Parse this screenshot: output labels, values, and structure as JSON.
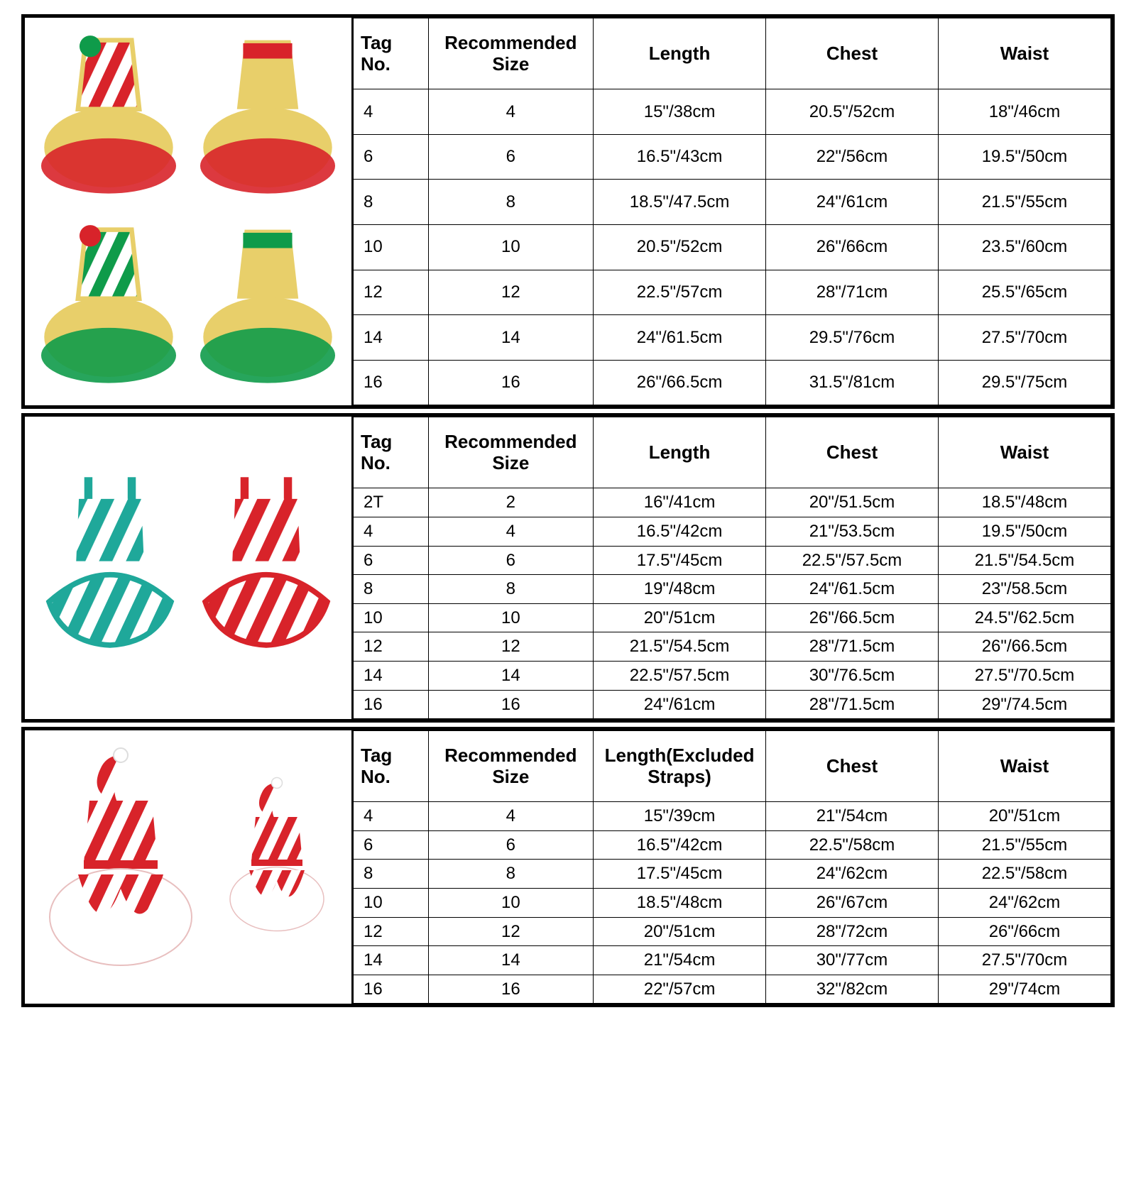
{
  "blocks": [
    {
      "image_type": "candy-tutu",
      "headers": [
        "Tag No.",
        "Recommended Size",
        "Length",
        "Chest",
        "Waist"
      ],
      "rows": [
        [
          "4",
          "4",
          "15\"/38cm",
          "20.5\"/52cm",
          "18\"/46cm"
        ],
        [
          "6",
          "6",
          "16.5\"/43cm",
          "22\"/56cm",
          "19.5\"/50cm"
        ],
        [
          "8",
          "8",
          "18.5\"/47.5cm",
          "24\"/61cm",
          "21.5\"/55cm"
        ],
        [
          "10",
          "10",
          "20.5\"/52cm",
          "26\"/66cm",
          "23.5\"/60cm"
        ],
        [
          "12",
          "12",
          "22.5\"/57cm",
          "28\"/71cm",
          "25.5\"/65cm"
        ],
        [
          "14",
          "14",
          "24\"/61.5cm",
          "29.5\"/76cm",
          "27.5\"/70cm"
        ],
        [
          "16",
          "16",
          "26\"/66.5cm",
          "31.5\"/81cm",
          "29.5\"/75cm"
        ]
      ]
    },
    {
      "image_type": "stripe-skater",
      "headers": [
        "Tag No.",
        "Recommended Size",
        "Length",
        "Chest",
        "Waist"
      ],
      "rows": [
        [
          "2T",
          "2",
          "16\"/41cm",
          "20\"/51.5cm",
          "18.5\"/48cm"
        ],
        [
          "4",
          "4",
          "16.5\"/42cm",
          "21\"/53.5cm",
          "19.5\"/50cm"
        ],
        [
          "6",
          "6",
          "17.5\"/45cm",
          "22.5\"/57.5cm",
          "21.5\"/54.5cm"
        ],
        [
          "8",
          "8",
          "19\"/48cm",
          "24\"/61.5cm",
          "23\"/58.5cm"
        ],
        [
          "10",
          "10",
          "20\"/51cm",
          "26\"/66.5cm",
          "24.5\"/62.5cm"
        ],
        [
          "12",
          "12",
          "21.5\"/54.5cm",
          "28\"/71.5cm",
          "26\"/66.5cm"
        ],
        [
          "14",
          "14",
          "22.5\"/57.5cm",
          "30\"/76.5cm",
          "27.5\"/70.5cm"
        ],
        [
          "16",
          "16",
          "24\"/61cm",
          "28\"/71.5cm",
          "29\"/74.5cm"
        ]
      ]
    },
    {
      "image_type": "santa-petal",
      "headers": [
        "Tag No.",
        "Recommended Size",
        "Length(Excluded Straps)",
        "Chest",
        "Waist"
      ],
      "rows": [
        [
          "4",
          "4",
          "15\"/39cm",
          "21\"/54cm",
          "20\"/51cm"
        ],
        [
          "6",
          "6",
          "16.5\"/42cm",
          "22.5\"/58cm",
          "21.5\"/55cm"
        ],
        [
          "8",
          "8",
          "17.5\"/45cm",
          "24\"/62cm",
          "22.5\"/58cm"
        ],
        [
          "10",
          "10",
          "18.5\"/48cm",
          "26\"/67cm",
          "24\"/62cm"
        ],
        [
          "12",
          "12",
          "20\"/51cm",
          "28\"/72cm",
          "26\"/66cm"
        ],
        [
          "14",
          "14",
          "21\"/54cm",
          "30\"/77cm",
          "27.5\"/70cm"
        ],
        [
          "16",
          "16",
          "22\"/57cm",
          "32\"/82cm",
          "29\"/74cm"
        ]
      ]
    }
  ],
  "colors": {
    "red": "#d8232a",
    "green": "#0f9b4a",
    "teal": "#1fa89a",
    "gold": "#e8cf6a",
    "white": "#ffffff",
    "border": "#000000"
  }
}
